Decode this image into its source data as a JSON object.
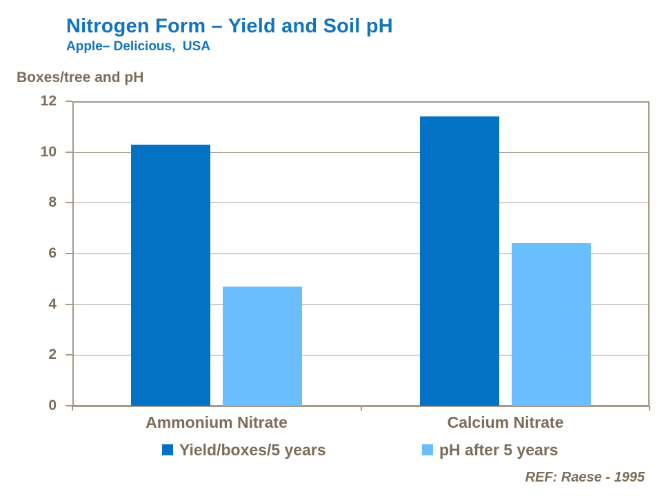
{
  "header": {
    "title": "Nitrogen Form – Yield and Soil pH",
    "subtitle": "Apple– Delicious,  USA",
    "title_color": "#1273BE"
  },
  "chart_data": {
    "type": "bar",
    "title": "Nitrogen Form – Yield and Soil pH",
    "subtitle": "Apple– Delicious, USA",
    "axis_title": "Boxes/tree and pH",
    "categories": [
      "Ammonium Nitrate",
      "Calcium Nitrate"
    ],
    "series": [
      {
        "name": "Yield/boxes/5 years",
        "color": "#0472C4",
        "values": [
          10.3,
          11.4
        ]
      },
      {
        "name": "pH after 5 years",
        "color": "#69BEFB",
        "values": [
          4.7,
          6.4
        ]
      }
    ],
    "ylim": [
      0,
      12
    ],
    "y_ticks": [
      0,
      2,
      4,
      6,
      8,
      10,
      12
    ],
    "grid": true,
    "legend_position": "bottom",
    "xlabel": "",
    "ylabel": "Boxes/tree and pH",
    "text_color": "#7C6C5A",
    "axis_color": "#A4998B",
    "grid_color": "#A59A8C"
  },
  "footnote": {
    "text": "REF: Raese - 1995"
  }
}
